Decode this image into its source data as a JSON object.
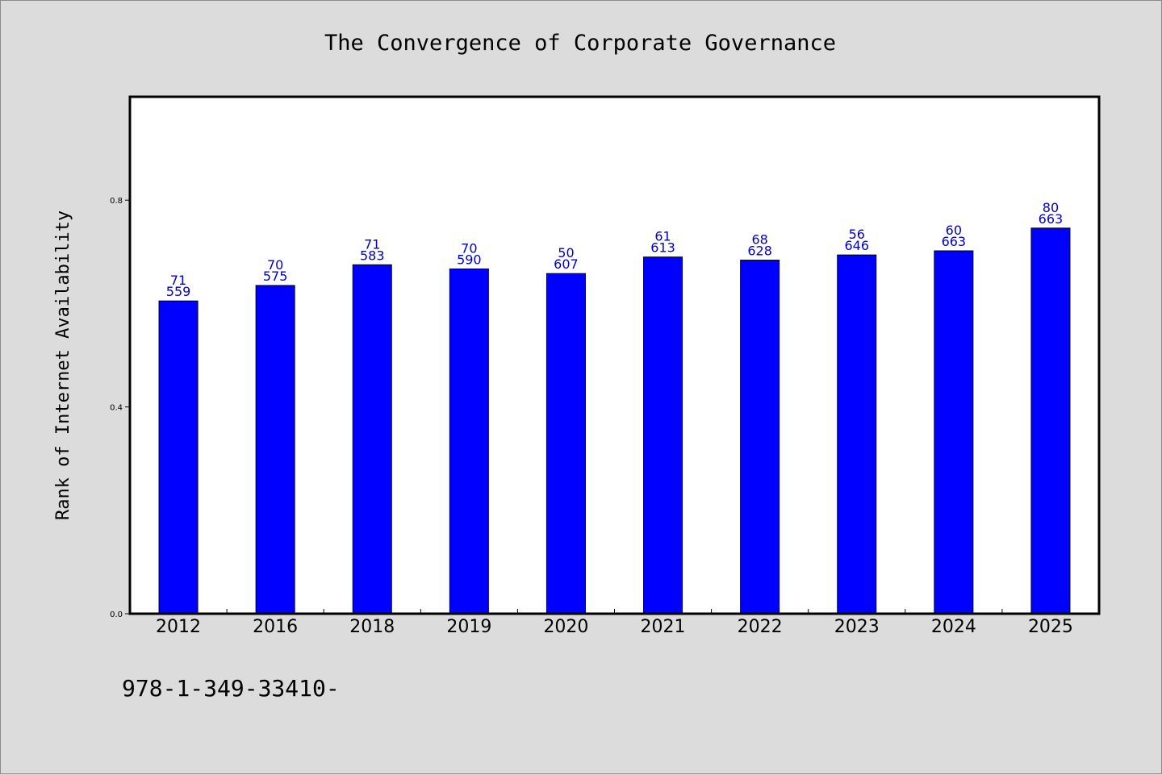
{
  "chart_data": {
    "type": "bar",
    "title": "The Convergence of Corporate Governance",
    "xlabel": "",
    "ylabel": "Rank of Internet Availability",
    "categories": [
      "2012",
      "2016",
      "2018",
      "2019",
      "2020",
      "2021",
      "2022",
      "2023",
      "2024",
      "2025"
    ],
    "values": [
      0.605,
      0.635,
      0.675,
      0.667,
      0.658,
      0.69,
      0.684,
      0.694,
      0.702,
      0.746
    ],
    "label_top": [
      "71",
      "70",
      "71",
      "70",
      "50",
      "61",
      "68",
      "56",
      "60",
      "80"
    ],
    "label_bottom": [
      "559",
      "575",
      "583",
      "590",
      "607",
      "613",
      "628",
      "646",
      "663",
      "663"
    ],
    "yticks": [
      "0.0",
      "0.4",
      "0.8"
    ],
    "ytick_values": [
      0.0,
      0.4,
      0.8
    ],
    "ylim": [
      0,
      1.0
    ],
    "grid": false,
    "legend": "none",
    "bar_color": "#0000ff",
    "label_color": "#0000cc"
  },
  "footer": {
    "text": "978-1-349-33410-"
  }
}
